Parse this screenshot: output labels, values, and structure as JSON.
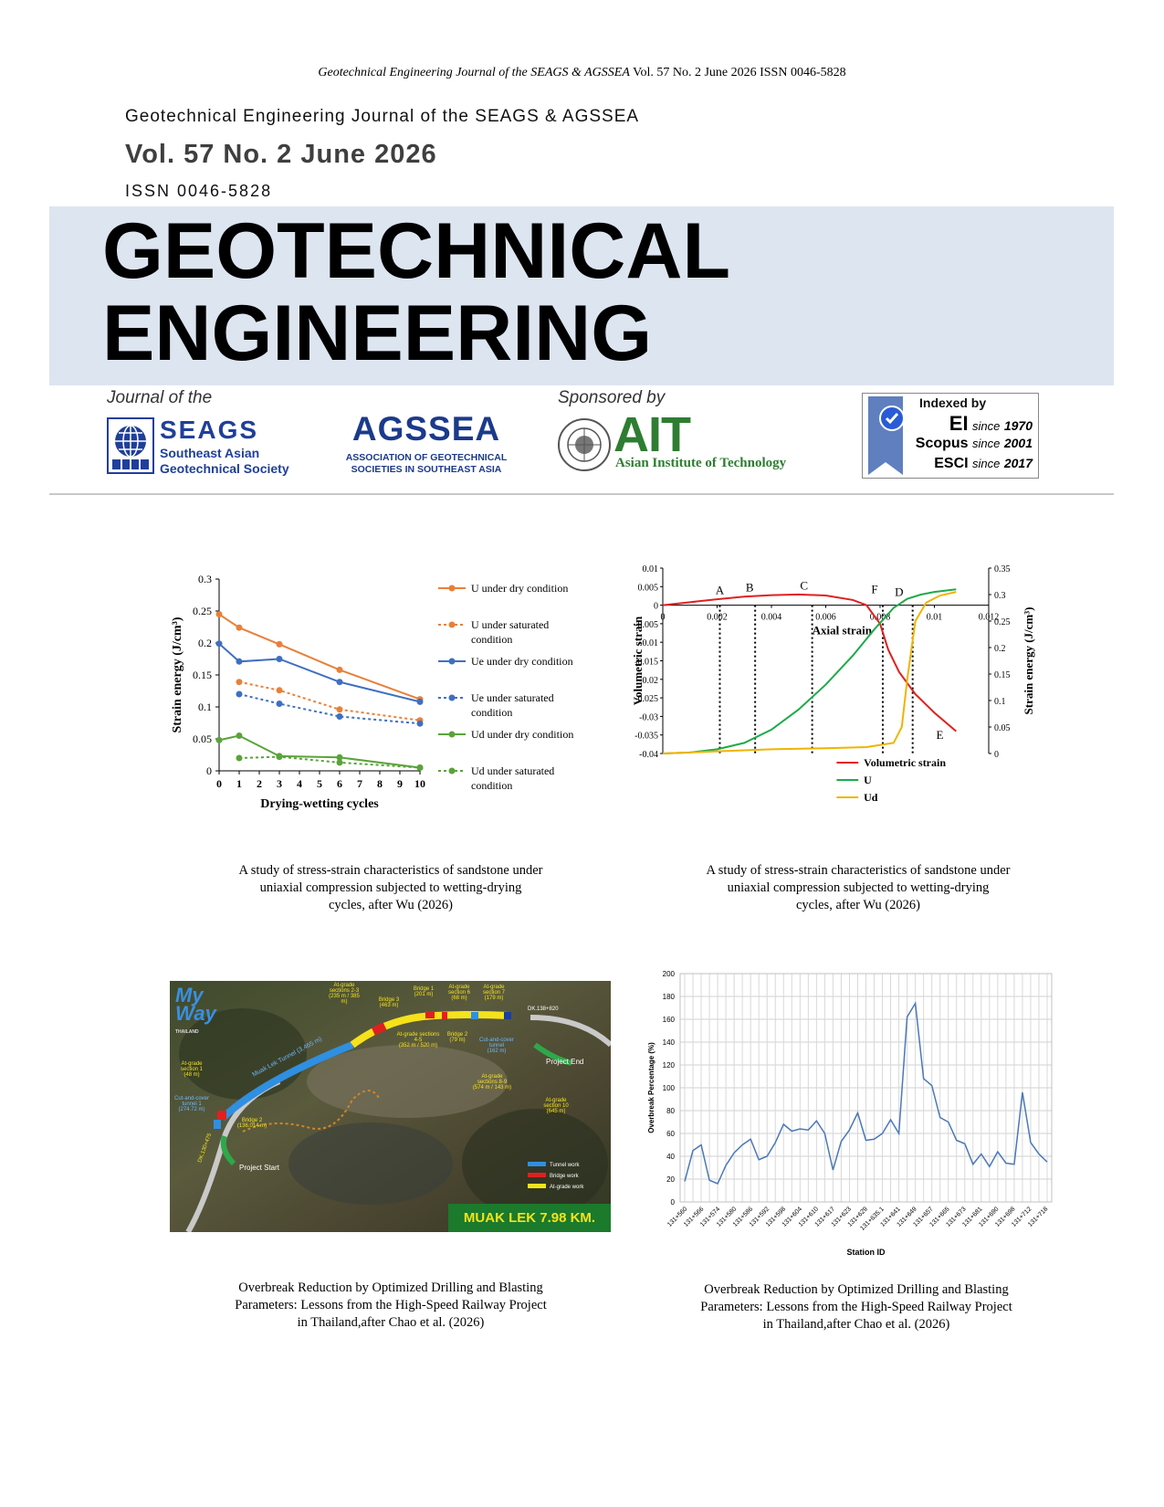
{
  "header": {
    "running_journal": "Geotechnical Engineering Journal of the SEAGS & AGSSEA",
    "running_rest": " Vol. 57 No. 2 June 2026 ISSN 0046-5828",
    "journal_line": "Geotechnical Engineering Journal of the SEAGS & AGSSEA",
    "volume_line": "Vol. 57 No. 2 June 2026",
    "issn_line": "ISSN 0046-5828",
    "title_line1": "GEOTECHNICAL",
    "title_line2": "ENGINEERING"
  },
  "sponsors": {
    "journal_of_label": "Journal of the",
    "sponsored_by_label": "Sponsored by",
    "seags_name": "SEAGS",
    "seags_sub1": "Southeast Asian",
    "seags_sub2": "Geotechnical Society",
    "agssea_name": "AGSSEA",
    "agssea_sub1": "ASSOCIATION OF GEOTECHNICAL",
    "agssea_sub2": "SOCIETIES IN SOUTHEAST ASIA",
    "ait_name": "AIT",
    "ait_sub": "Asian Institute of Technology",
    "indexed": {
      "heading": "Indexed by",
      "rows": [
        {
          "name": "EI",
          "since": "since",
          "year": "1970"
        },
        {
          "name": "Scopus",
          "since": "since",
          "year": "2001"
        },
        {
          "name": "ESCI",
          "since": "since",
          "year": "2017"
        }
      ]
    },
    "colors": {
      "seags_blue": "#1f3f9a",
      "agssea_blue": "#1b3a8c",
      "ait_green": "#2e7d32",
      "indexed_blue": "#2a5bd7"
    }
  },
  "captions": {
    "fig1": [
      "A study of stress-strain characteristics of sandstone under",
      "uniaxial compression subjected to wetting-drying",
      "cycles, after Wu (2026)"
    ],
    "fig2": [
      "A study of stress-strain characteristics of sandstone under",
      "uniaxial compression subjected to wetting-drying",
      "cycles, after Wu (2026)"
    ],
    "fig3": [
      "Overbreak Reduction by Optimized Drilling and Blasting",
      "Parameters: Lessons from the High-Speed Railway Project",
      "in Thailand,after Chao et al. (2026)"
    ],
    "fig4": [
      "Overbreak Reduction by Optimized Drilling and Blasting",
      "Parameters: Lessons from the High-Speed Railway Project",
      "in Thailand,after Chao et al. (2026)"
    ]
  },
  "map": {
    "logo_top": "My",
    "logo_bottom": "Way",
    "logo_small": "THAILAND",
    "labels": [
      "At-grade sections 2-3",
      "(235 m / 385 m)",
      "Bridge 3",
      "(463 m)",
      "Bridge 1",
      "(201 m)",
      "At-grade section 6",
      "(68 m)",
      "At-grade section 7",
      "(179 m)",
      "DK.138+820",
      "Muak Lek Tunnel (3,465 m)",
      "At-grade sections 4-5",
      "(352 m / 520 m)",
      "Bridge 2",
      "(79 m)",
      "Cut-and-cover tunnel",
      "(162 m)",
      "Project End",
      "At-grade section 1",
      "(48 m)",
      "Cut-and-cover tunnel 1",
      "(274.72 m)",
      "At-grade sections 8-9",
      "(574 m / 143 m)",
      "At-grade section 10",
      "(645 m)",
      "Bridge 2",
      "(136.014 m)",
      "DK.130+475",
      "Project Start"
    ],
    "legend": [
      "Tunnel work",
      "Bridge work",
      "At-grade work"
    ],
    "banner": "MUAK LEK 7.98 KM."
  },
  "chart_data": [
    {
      "type": "line",
      "xlabel": "Drying-wetting cycles",
      "ylabel": "Strain energy (J/cm³)",
      "x_ticks": [
        0,
        1,
        2,
        3,
        4,
        5,
        6,
        7,
        8,
        9,
        10
      ],
      "y_ticks": [
        "0",
        "0.05",
        "0.1",
        "0.15",
        "0.2",
        "0.25",
        "0.3"
      ],
      "xlim": [
        0,
        10
      ],
      "ylim": [
        0,
        0.3
      ],
      "series": [
        {
          "name": "U  under dry condition",
          "color": "#e8803a",
          "dashed": false,
          "x": [
            0,
            1,
            3,
            6,
            10
          ],
          "y": [
            0.245,
            0.224,
            0.198,
            0.158,
            0.112
          ]
        },
        {
          "name": "U  under saturated condition",
          "color": "#e8803a",
          "dashed": true,
          "x": [
            1,
            3,
            6,
            10
          ],
          "y": [
            0.139,
            0.126,
            0.096,
            0.079
          ]
        },
        {
          "name": "Ue  under dry condition",
          "color": "#3f6fc0",
          "dashed": false,
          "x": [
            0,
            1,
            3,
            6,
            10
          ],
          "y": [
            0.199,
            0.171,
            0.175,
            0.139,
            0.108
          ]
        },
        {
          "name": "Ue  under saturated condition",
          "color": "#3f6fc0",
          "dashed": true,
          "x": [
            1,
            3,
            6,
            10
          ],
          "y": [
            0.12,
            0.105,
            0.085,
            0.074
          ]
        },
        {
          "name": "Ud  under dry condition",
          "color": "#5aa33a",
          "dashed": false,
          "x": [
            0,
            1,
            3,
            6,
            10
          ],
          "y": [
            0.048,
            0.055,
            0.023,
            0.021,
            0.005
          ]
        },
        {
          "name": "Ud  under saturated condition",
          "color": "#5aa33a",
          "dashed": true,
          "x": [
            1,
            3,
            6,
            10
          ],
          "y": [
            0.02,
            0.022,
            0.013,
            0.005
          ]
        }
      ]
    },
    {
      "type": "line",
      "xlabel": "Axial strain",
      "ylabel": "Volumetric strain",
      "y2label": "Strain energy (J/cm³)",
      "x_ticks": [
        "0",
        "0.002",
        "0.004",
        "0.006",
        "0.008",
        "0.01",
        "0.012"
      ],
      "y_ticks": [
        "0.01",
        "0.005",
        "0",
        "-0.005",
        "-0.01",
        "-0.015",
        "-0.02",
        "-0.025",
        "-0.03",
        "-0.035",
        "-0.04"
      ],
      "y2_ticks": [
        "0.35",
        "0.3",
        "0.25",
        "0.2",
        "0.15",
        "0.1",
        "0.05",
        "0"
      ],
      "xlim": [
        0,
        0.012
      ],
      "ylim": [
        -0.04,
        0.01
      ],
      "y2lim": [
        0,
        0.35
      ],
      "stage_lines": [
        0.0021,
        0.0034,
        0.0055,
        0.0081,
        0.0092
      ],
      "point_labels": [
        "A",
        "B",
        "C",
        "F",
        "D",
        "E"
      ],
      "series": [
        {
          "name": "Volumetric strain",
          "color": "#e02020",
          "axis": "left",
          "x": [
            0,
            0.001,
            0.002,
            0.003,
            0.004,
            0.005,
            0.006,
            0.007,
            0.0075,
            0.008,
            0.0083,
            0.0087,
            0.0093,
            0.01,
            0.0108
          ],
          "y": [
            0,
            0.0008,
            0.0016,
            0.0023,
            0.0027,
            0.0029,
            0.0026,
            0.0014,
            0.0,
            -0.005,
            -0.012,
            -0.018,
            -0.024,
            -0.029,
            -0.034
          ]
        },
        {
          "name": "U",
          "color": "#1faa4a",
          "axis": "right",
          "x": [
            0,
            0.001,
            0.002,
            0.003,
            0.004,
            0.005,
            0.006,
            0.007,
            0.0078,
            0.0085,
            0.009,
            0.0095,
            0.01,
            0.0108
          ],
          "y": [
            0,
            0.002,
            0.008,
            0.02,
            0.045,
            0.083,
            0.13,
            0.185,
            0.235,
            0.275,
            0.292,
            0.3,
            0.305,
            0.31
          ]
        },
        {
          "name": "Ud",
          "color": "#f0b400",
          "axis": "right",
          "x": [
            0,
            0.002,
            0.004,
            0.006,
            0.0075,
            0.0085,
            0.0088,
            0.009,
            0.0093,
            0.0097,
            0.0102,
            0.0108
          ],
          "y": [
            0,
            0.004,
            0.008,
            0.01,
            0.012,
            0.02,
            0.05,
            0.14,
            0.25,
            0.285,
            0.298,
            0.305
          ]
        }
      ]
    },
    {
      "type": "line",
      "xlabel": "Station ID",
      "ylabel": "Overbreak Percentage (%)",
      "ylim": [
        0,
        200
      ],
      "y_ticks": [
        "0",
        "20",
        "40",
        "60",
        "80",
        "100",
        "120",
        "140",
        "160",
        "180",
        "200"
      ],
      "x_tick_labels": [
        "131+560",
        "131+566",
        "131+574",
        "131+580",
        "131+586",
        "131+592",
        "131+598",
        "131+604",
        "131+610",
        "131+617",
        "131+623",
        "131+629",
        "131+635.1",
        "131+641",
        "131+649",
        "131+657",
        "131+665",
        "131+673",
        "131+681",
        "131+690",
        "131+698",
        "131+712",
        "131+718"
      ],
      "series": [
        {
          "name": "",
          "color": "#4a78b8",
          "values": [
            18,
            45,
            50,
            19,
            16,
            32,
            43,
            50,
            55,
            37,
            40,
            52,
            68,
            62,
            64,
            63,
            71,
            60,
            28,
            53,
            63,
            78,
            54,
            55,
            60,
            72,
            60,
            162,
            174,
            108,
            102,
            74,
            70,
            54,
            51,
            33,
            42,
            31,
            44,
            34,
            33,
            96,
            52,
            42,
            35
          ]
        }
      ]
    }
  ]
}
